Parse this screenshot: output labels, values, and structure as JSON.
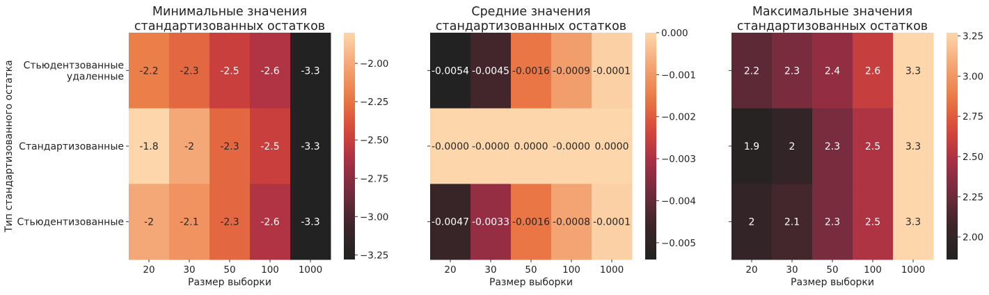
{
  "figure": {
    "ylabel": "Тип стандартизованного остатка",
    "xlabel": "Размер выборки"
  },
  "chart_data": [
    {
      "type": "heatmap",
      "title": "Минимальные значения\nстандартизованных остатков",
      "xlabel": "Размер выборки",
      "ylabel": "Тип стандартизованного остатка",
      "x_categories": [
        "20",
        "30",
        "50",
        "100",
        "1000"
      ],
      "y_categories": [
        "Стьюдентзованные\nудаленные",
        "Стандартизованные",
        "Стьюдентизованные"
      ],
      "values": [
        [
          -2.2,
          -2.3,
          -2.5,
          -2.6,
          -3.3
        ],
        [
          -1.8,
          -2.0,
          -2.3,
          -2.5,
          -3.3
        ],
        [
          -2.0,
          -2.1,
          -2.3,
          -2.6,
          -3.3
        ]
      ],
      "annotations": [
        [
          "-2.2",
          "-2.3",
          "-2.5",
          "-2.6",
          "-3.3"
        ],
        [
          "-1.8",
          "-2",
          "-2.3",
          "-2.5",
          "-3.3"
        ],
        [
          "-2",
          "-2.1",
          "-2.3",
          "-2.6",
          "-3.3"
        ]
      ],
      "color_range": [
        -3.28,
        -1.8
      ],
      "colorbar_ticks": [
        "-2.00",
        "-2.25",
        "-2.50",
        "-2.75",
        "-3.00",
        "-3.25"
      ],
      "colorbar_tick_values": [
        -2.0,
        -2.25,
        -2.5,
        -2.75,
        -3.0,
        -3.25
      ]
    },
    {
      "type": "heatmap",
      "title": "Средние значения\nстандартизованных остатков",
      "xlabel": "Размер выборки",
      "x_categories": [
        "20",
        "30",
        "50",
        "100",
        "1000"
      ],
      "values": [
        [
          -0.0054,
          -0.0045,
          -0.0016,
          -0.0009,
          -0.0001
        ],
        [
          -0.0,
          -0.0,
          0.0,
          -0.0,
          0.0
        ],
        [
          -0.0047,
          -0.0033,
          -0.0016,
          -0.0008,
          -0.0001
        ]
      ],
      "annotations": [
        [
          "-0.0054",
          "-0.0045",
          "-0.0016",
          "-0.0009",
          "-0.0001"
        ],
        [
          "-0.0000",
          "-0.0000",
          "0.0000",
          "-0.0000",
          "0.0000"
        ],
        [
          "-0.0047",
          "-0.0033",
          "-0.0016",
          "-0.0008",
          "-0.0001"
        ]
      ],
      "color_range": [
        -0.0054,
        0.0
      ],
      "colorbar_ticks": [
        "0.000",
        "-0.001",
        "-0.002",
        "-0.003",
        "-0.004",
        "-0.005"
      ],
      "colorbar_tick_values": [
        0.0,
        -0.001,
        -0.002,
        -0.003,
        -0.004,
        -0.005
      ]
    },
    {
      "type": "heatmap",
      "title": "Максимальные значения\nстандартизованных остатков",
      "xlabel": "Размер выборки",
      "x_categories": [
        "20",
        "30",
        "50",
        "100",
        "1000"
      ],
      "values": [
        [
          2.2,
          2.3,
          2.4,
          2.6,
          3.3
        ],
        [
          1.9,
          2.0,
          2.3,
          2.5,
          3.3
        ],
        [
          2.0,
          2.1,
          2.3,
          2.5,
          3.3
        ]
      ],
      "annotations": [
        [
          "2.2",
          "2.3",
          "2.4",
          "2.6",
          "3.3"
        ],
        [
          "1.9",
          "2",
          "2.3",
          "2.5",
          "3.3"
        ],
        [
          "2",
          "2.1",
          "2.3",
          "2.5",
          "3.3"
        ]
      ],
      "color_range": [
        1.86,
        3.27
      ],
      "colorbar_ticks": [
        "3.25",
        "3.00",
        "2.75",
        "2.50",
        "2.25",
        "2.00"
      ],
      "colorbar_tick_values": [
        3.25,
        3.0,
        2.75,
        2.5,
        2.25,
        2.0
      ]
    }
  ],
  "colormap": {
    "name": "icefire-right",
    "stops": [
      "#222222",
      "#3a2529",
      "#6e2b3c",
      "#a52f45",
      "#d8463a",
      "#ea7a45",
      "#f4a574",
      "#fdd6ac"
    ]
  },
  "text_colors": {
    "on_dark": "#ffffff",
    "on_light": "#262626"
  }
}
